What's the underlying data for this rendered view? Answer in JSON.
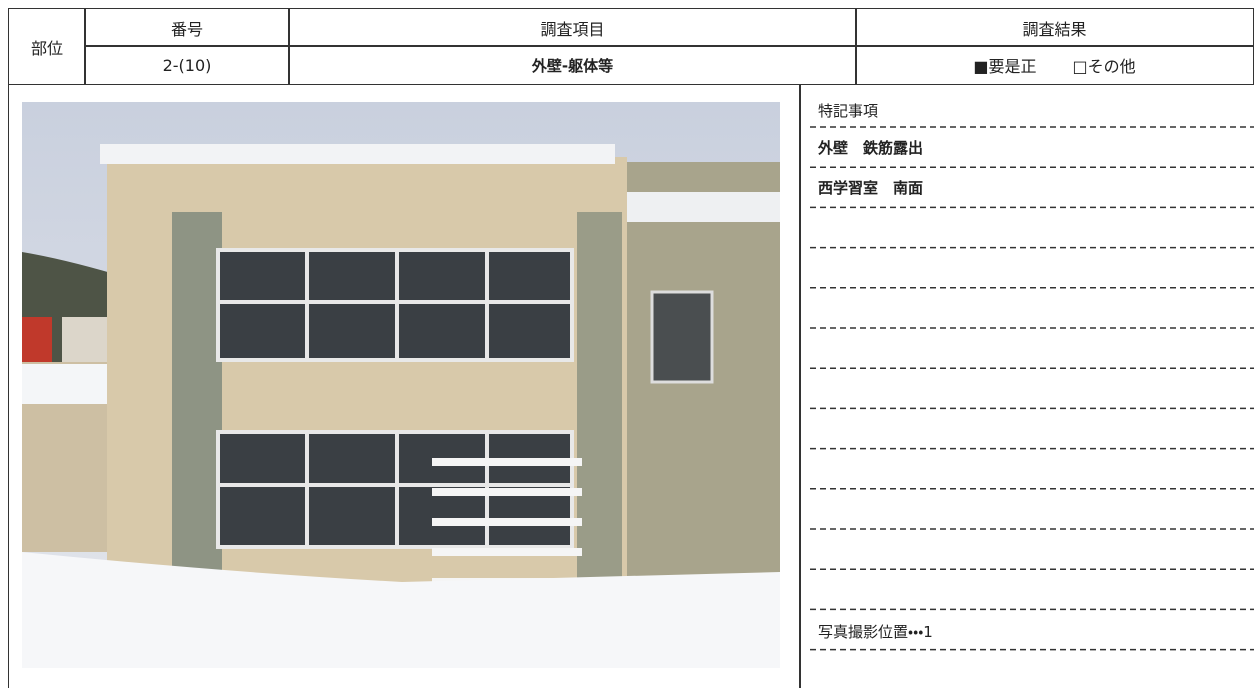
{
  "header": {
    "labels": {
      "part": "部位",
      "number": "番号",
      "item": "調査項目",
      "result": "調査結果"
    },
    "values": {
      "number": "2-(10)",
      "item": "外壁-躯体等",
      "result_options": [
        "■要是正",
        "□その他"
      ]
    }
  },
  "notes": {
    "title": "特記事項",
    "lines": [
      "外壁　鉄筋露出",
      "西学習室　南面"
    ],
    "photo_position": "写真撮影位置・・・1"
  }
}
